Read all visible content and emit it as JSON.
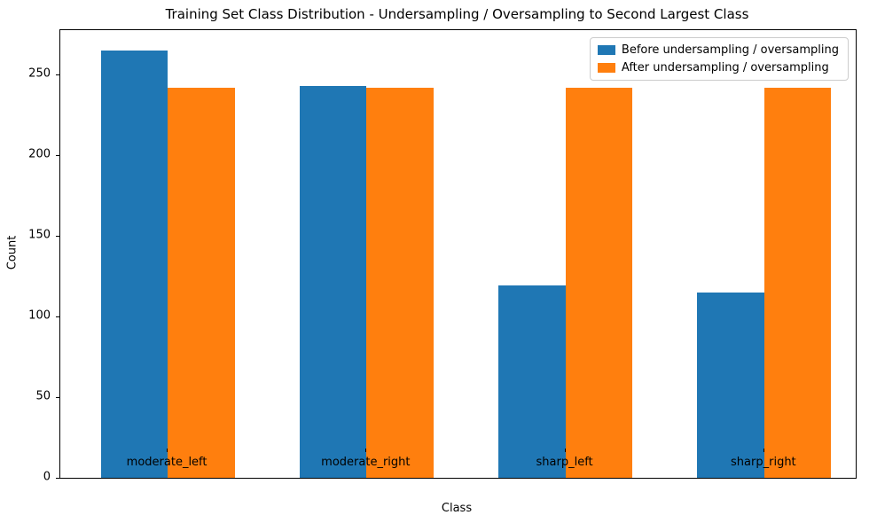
{
  "chart_data": {
    "type": "bar",
    "title": "Training Set Class Distribution - Undersampling / Oversampling to Second Largest Class",
    "xlabel": "Class",
    "ylabel": "Count",
    "categories": [
      "moderate_left",
      "moderate_right",
      "sharp_left",
      "sharp_right"
    ],
    "series": [
      {
        "name": "Before undersampling / oversampling",
        "color": "#1f77b4",
        "values": [
          265,
          243,
          119,
          115
        ]
      },
      {
        "name": "After undersampling / oversampling",
        "color": "#ff7f0e",
        "values": [
          242,
          242,
          242,
          242
        ]
      }
    ],
    "ylim": [
      0,
      277.5
    ],
    "yticks": [
      0,
      50,
      100,
      150,
      200,
      250
    ],
    "grid": false,
    "legend_position": "upper right",
    "background_color": "#ffffff",
    "spine_color": "#000000"
  }
}
